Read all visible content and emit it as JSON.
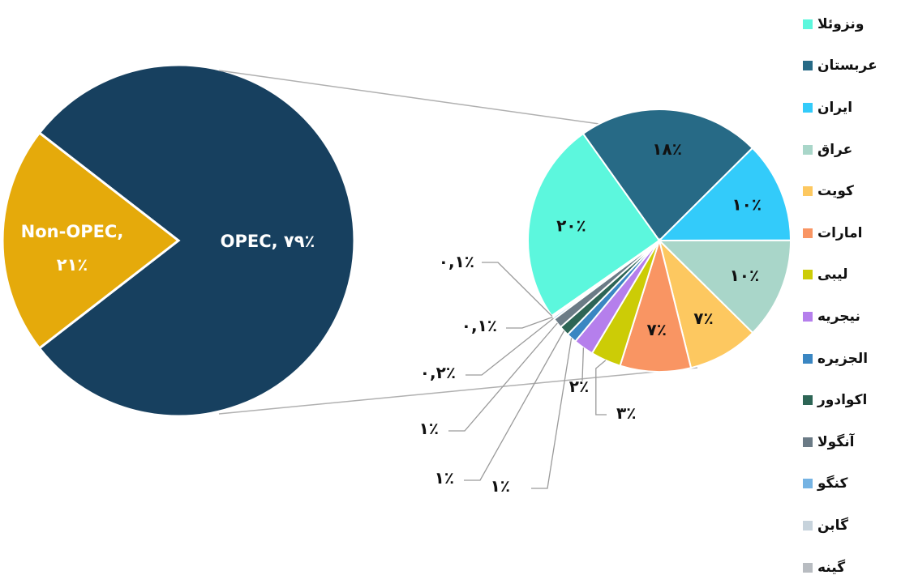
{
  "chart_data": [
    {
      "type": "pie",
      "slices": [
        {
          "label": "OPEC, ٧٩٪",
          "value": 79,
          "color": "#17405f"
        },
        {
          "label": "Non-OPEC, ٢١٪",
          "value": 21,
          "color": "#e5aa0b"
        }
      ]
    },
    {
      "type": "pie",
      "slices": [
        {
          "name": "ونزوئلا",
          "value": 20,
          "label": "٢٠٪",
          "color": "#5cf7dd"
        },
        {
          "name": "عربستان",
          "value": 18,
          "label": "١٨٪",
          "color": "#276a86"
        },
        {
          "name": "ایران",
          "value": 10,
          "label": "١٠٪",
          "color": "#33cbfa"
        },
        {
          "name": "عراق",
          "value": 10,
          "label": "١٠٪",
          "color": "#a9d6c9"
        },
        {
          "name": "کویت",
          "value": 7,
          "label": "٧٪",
          "color": "#fdc860"
        },
        {
          "name": "امارات",
          "value": 7,
          "label": "٧٪",
          "color": "#f99563"
        },
        {
          "name": "لیبی",
          "value": 3,
          "label": "٣٪",
          "color": "#cccc06"
        },
        {
          "name": "نیجریه",
          "value": 2,
          "label": "٢٪",
          "color": "#b57fec"
        },
        {
          "name": "الجزیره",
          "value": 1,
          "label": "١٪",
          "color": "#3a86c2"
        },
        {
          "name": "اکوادور",
          "value": 1,
          "label": "١٪",
          "color": "#2d6555"
        },
        {
          "name": "آنگولا",
          "value": 1,
          "label": "١٪",
          "color": "#6b7b86"
        },
        {
          "name": "کنگو",
          "value": 0.2,
          "label": "٠,٢٪",
          "color": "#75b3e3"
        },
        {
          "name": "گابن",
          "value": 0.1,
          "label": "٠,١٪",
          "color": "#c7d3dc"
        },
        {
          "name": "گینه",
          "value": 0.1,
          "label": "٠,١٪",
          "color": "#b8bcc1"
        }
      ],
      "legend_position": "right"
    }
  ]
}
